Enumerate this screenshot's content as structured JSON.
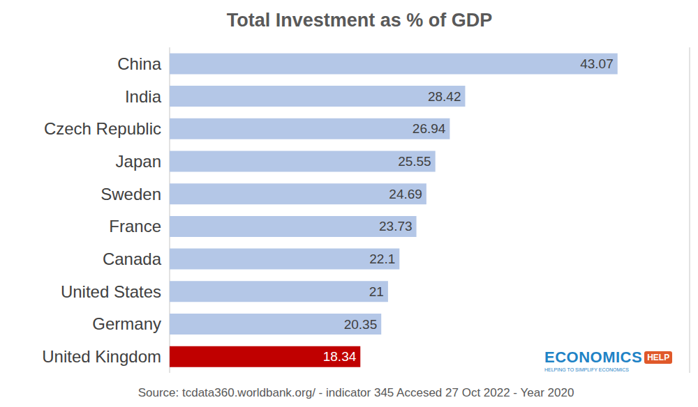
{
  "chart_data": {
    "type": "bar",
    "title": "Total Investment as % of GDP",
    "orientation": "horizontal",
    "categories": [
      "China",
      "India",
      "Czech Republic",
      "Japan",
      "Sweden",
      "France",
      "Canada",
      "United States",
      "Germany",
      "United Kingdom"
    ],
    "values": [
      43.07,
      28.42,
      26.94,
      25.55,
      24.69,
      23.73,
      22.1,
      21,
      20.35,
      18.34
    ],
    "colors": [
      "#b4c7e7",
      "#b4c7e7",
      "#b4c7e7",
      "#b4c7e7",
      "#b4c7e7",
      "#b4c7e7",
      "#b4c7e7",
      "#b4c7e7",
      "#b4c7e7",
      "#c00000"
    ],
    "xlim": [
      0,
      50
    ],
    "xticks": [
      0,
      5,
      10,
      15,
      20,
      25,
      30,
      35,
      40,
      45,
      50
    ],
    "grid": true,
    "data_labels": true,
    "tick_labels": "y",
    "source": "Source: tcdata360.worldbank.org/ - indicator 345 Accesed 27 Oct 2022 - Year 2020",
    "logo": {
      "text": "ECONOMICS",
      "badge": "HELP",
      "tagline": "HELPING TO SIMPLIFY ECONOMICS"
    }
  }
}
